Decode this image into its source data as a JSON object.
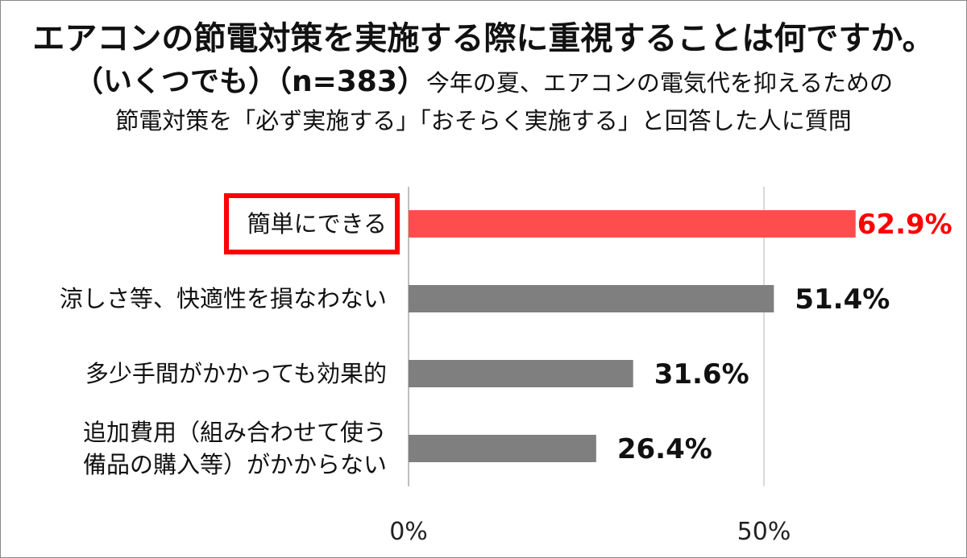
{
  "title": "エアコンの節電対策を実施する際に重視することは何ですか。",
  "subtitle": {
    "multi": "（いくつでも）",
    "n": "（n=383）",
    "note_line1": "今年の夏、エアコンの電気代を抑えるための",
    "note_line2": "節電対策を「必ず実施する」「おそらく実施する」と回答した人に質問"
  },
  "colors": {
    "highlight": "#ff4d4d",
    "highlight_label": "#ff0000",
    "bar": "#7f7f7f",
    "box": "#ff0000",
    "gridline": "#d9d9d9"
  },
  "chart_data": {
    "type": "bar",
    "orientation": "horizontal",
    "categories": [
      [
        "簡単にできる"
      ],
      [
        "涼しさ等、快適性を損なわない"
      ],
      [
        "多少手間がかかっても効果的"
      ],
      [
        "追加費用（組み合わせて使う",
        "備品の購入等）がかからない"
      ]
    ],
    "values": [
      62.9,
      51.4,
      31.6,
      26.4
    ],
    "value_labels": [
      "62.9%",
      "51.4%",
      "31.6%",
      "26.4%"
    ],
    "highlight_index": 0,
    "xlim": [
      0,
      50
    ],
    "ticks": [
      0,
      50
    ],
    "tick_labels": [
      "0%",
      "50%"
    ],
    "grid": true
  }
}
